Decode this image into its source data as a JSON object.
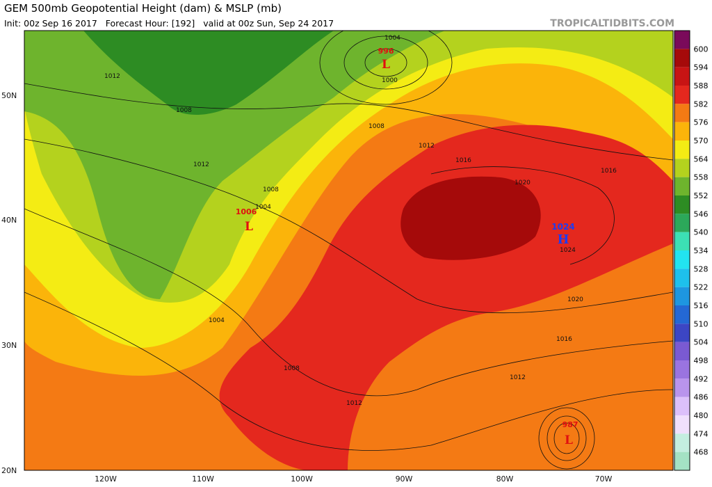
{
  "header": {
    "title": "GEM 500mb Geopotential Height (dam) & MSLP (mb)",
    "subtitle": "Init: 00z Sep 16 2017   Forecast Hour: [192]   valid at 00z Sun, Sep 24 2017",
    "site": "TROPICALTIDBITS.COM"
  },
  "colorbar": {
    "levels": [
      600,
      594,
      588,
      582,
      576,
      570,
      564,
      558,
      552,
      546,
      540,
      534,
      528,
      522,
      516,
      510,
      504,
      498,
      492,
      486,
      480,
      474,
      468
    ],
    "colors": [
      "#a50a0a",
      "#c81414",
      "#e4281e",
      "#f47a14",
      "#fbb40a",
      "#f4ec14",
      "#b4d21e",
      "#6eb42d",
      "#2d8c23",
      "#2ca85a",
      "#3ce0b4",
      "#22e4f0",
      "#1ec0ec",
      "#1e96e0",
      "#2468d4",
      "#3c46c4",
      "#7a5ad2",
      "#9a74e0",
      "#b994ec",
      "#dcc0fa",
      "#f0e0fc",
      "#c4eee0",
      "#a4e2c4"
    ],
    "top_color": "#7a0a5a"
  },
  "lat_labels": [
    "50N",
    "40N",
    "30N",
    "20N"
  ],
  "lon_labels": [
    "120W",
    "110W",
    "100W",
    "90W",
    "80W",
    "70W"
  ],
  "systems": [
    {
      "type": "L",
      "pressure": "996"
    },
    {
      "type": "L",
      "pressure": "1006"
    },
    {
      "type": "H",
      "pressure": "1024"
    },
    {
      "type": "L",
      "pressure": "987"
    }
  ],
  "isobar_labels": [
    "1004",
    "1000",
    "1012",
    "1008",
    "1008",
    "1012",
    "1008",
    "1004",
    "1012",
    "1016",
    "1020",
    "1016",
    "1024",
    "1020",
    "1016",
    "1012",
    "1004",
    "1008",
    "1012"
  ]
}
